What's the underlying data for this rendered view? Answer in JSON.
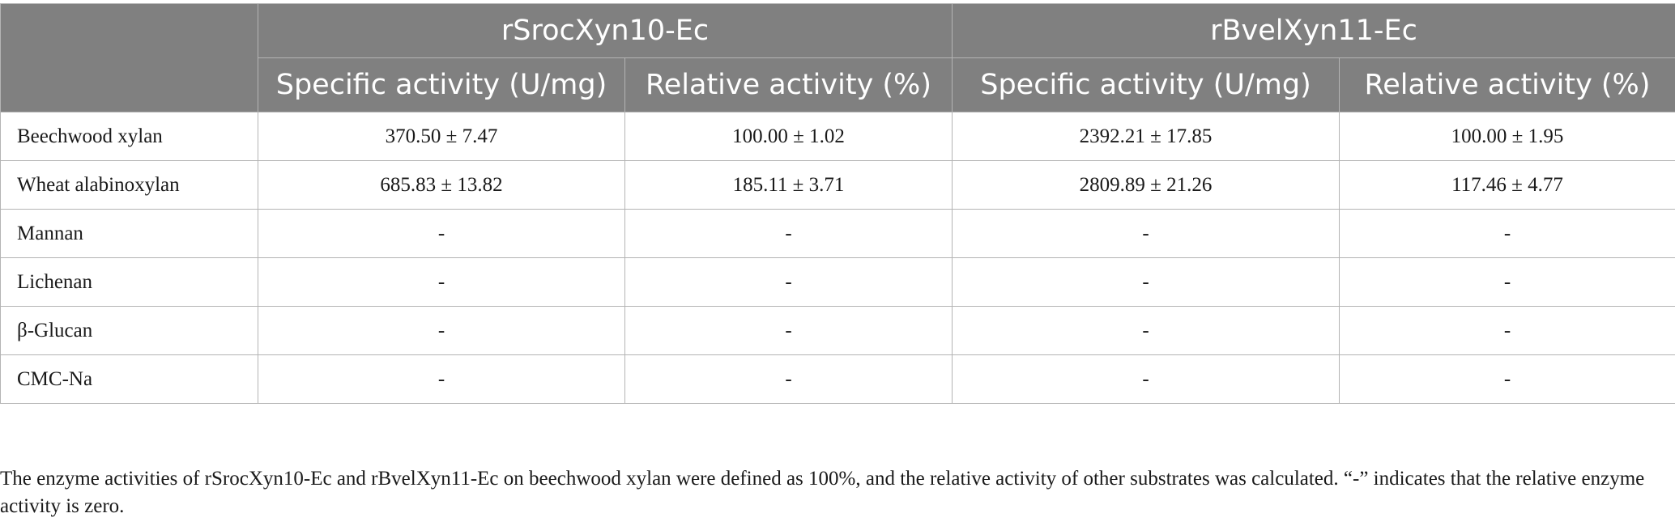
{
  "table": {
    "corner": "",
    "groups": [
      "rSrocXyn10-Ec",
      "rBvelXyn11-Ec"
    ],
    "subheaders": [
      "Specific activity (U/mg)",
      "Relative activity (%)",
      "Specific activity (U/mg)",
      "Relative activity (%)"
    ],
    "rows": [
      {
        "substrate": "Beechwood xylan",
        "cells": [
          "370.50 ± 7.47",
          "100.00 ± 1.02",
          "2392.21 ± 17.85",
          "100.00 ± 1.95"
        ]
      },
      {
        "substrate": "Wheat alabinoxylan",
        "cells": [
          "685.83 ± 13.82",
          "185.11 ± 3.71",
          "2809.89 ± 21.26",
          "117.46 ± 4.77"
        ]
      },
      {
        "substrate": "Mannan",
        "cells": [
          "-",
          "-",
          "-",
          "-"
        ]
      },
      {
        "substrate": "Lichenan",
        "cells": [
          "-",
          "-",
          "-",
          "-"
        ]
      },
      {
        "substrate": "β-Glucan",
        "cells": [
          "-",
          "-",
          "-",
          "-"
        ]
      },
      {
        "substrate": "CMC-Na",
        "cells": [
          "-",
          "-",
          "-",
          "-"
        ]
      }
    ]
  },
  "footnote": "The enzyme activities of rSrocXyn10-Ec and rBvelXyn11-Ec on beechwood xylan were defined as 100%, and the relative activity of other substrates was calculated. “-” indicates that the relative enzyme activity is zero."
}
